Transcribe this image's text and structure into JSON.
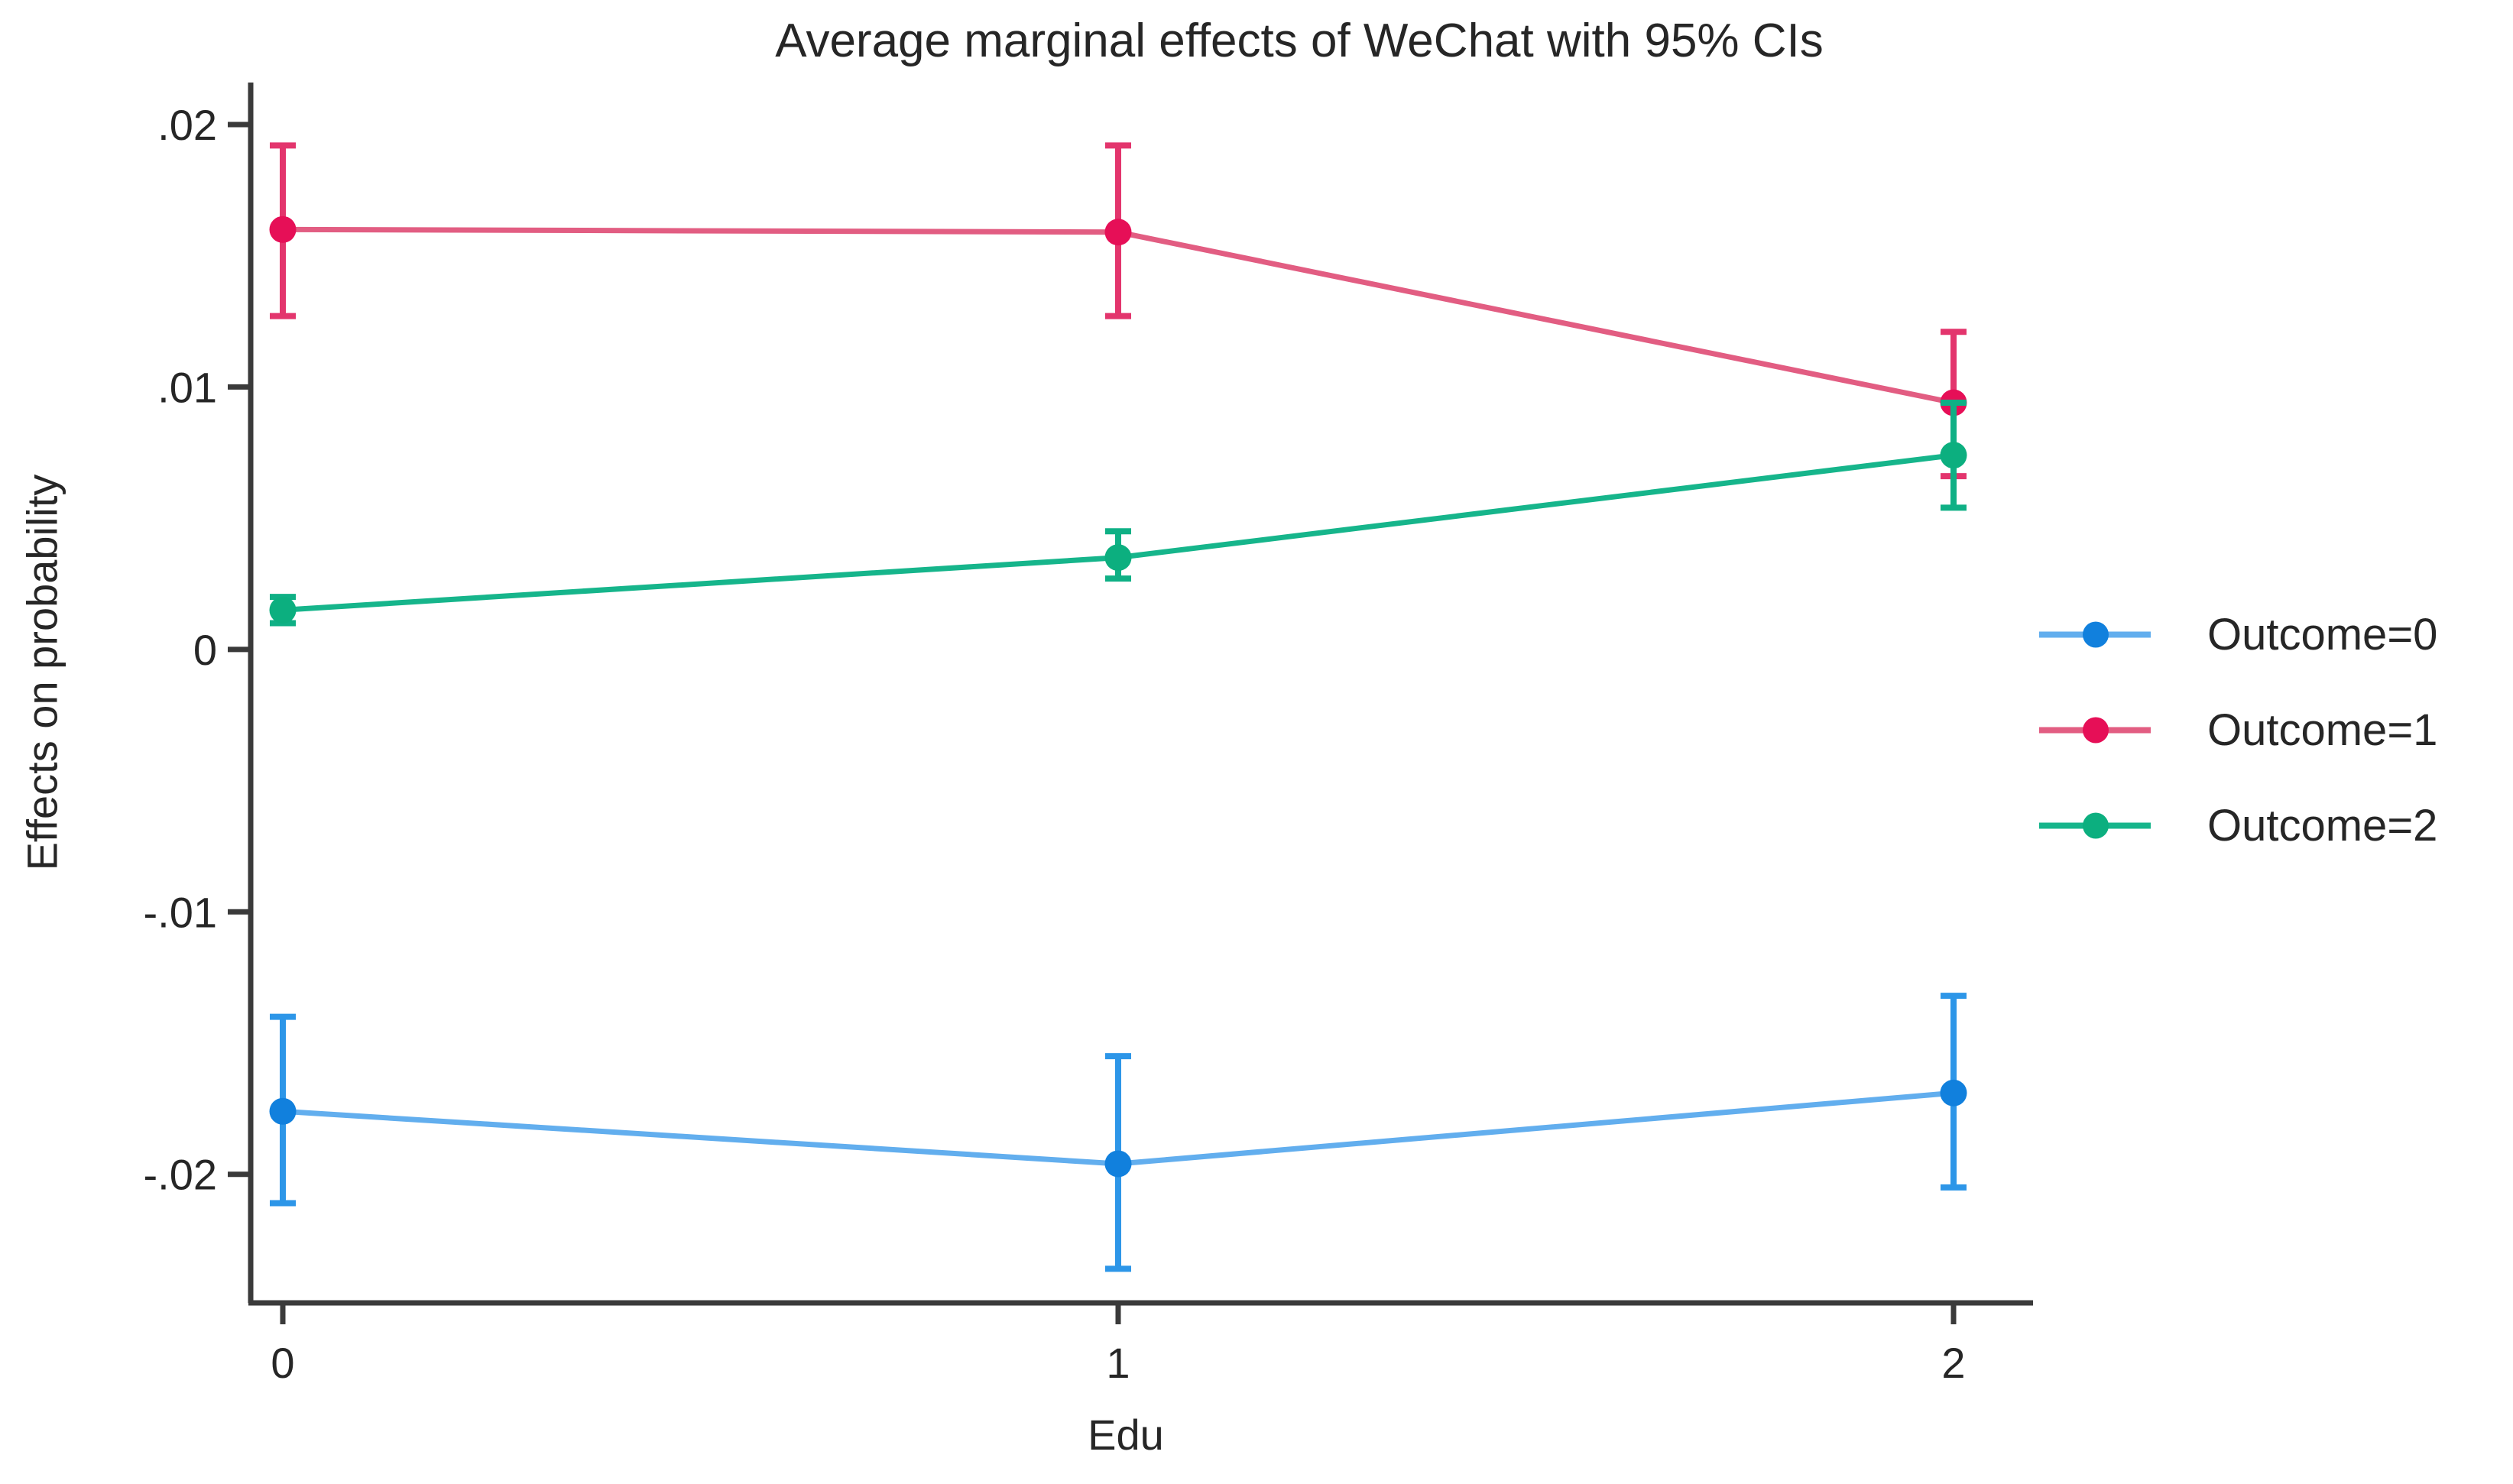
{
  "figure": {
    "background": "#ffffff",
    "text_color": "#262626",
    "axis_color": "#3a3a3a"
  },
  "chart_data": {
    "type": "line",
    "title": "Average marginal effects of WeChat with 95% CIs",
    "xlabel": "Edu",
    "ylabel": "Effects on probability",
    "categories": [
      "0",
      "1",
      "2"
    ],
    "y_ticks": [
      {
        "label": ".02",
        "value": 0.02
      },
      {
        "label": ".01",
        "value": 0.01
      },
      {
        "label": "0",
        "value": 0.0
      },
      {
        "label": "-.01",
        "value": -0.01
      },
      {
        "label": "-.02",
        "value": -0.02
      }
    ],
    "ylim": [
      -0.0249,
      0.0216
    ],
    "grid": false,
    "error_bars": "95% confidence intervals",
    "legend_position": "right",
    "series": [
      {
        "name": "Outcome=0",
        "marker_color": "#1180dd",
        "line_color": "#62aeee",
        "ci_color": "#2d96e8",
        "values": [
          -0.0176,
          -0.0196,
          -0.0169
        ],
        "ci_low": [
          -0.0211,
          -0.0236,
          -0.0205
        ],
        "ci_high": [
          -0.014,
          -0.0155,
          -0.0132
        ]
      },
      {
        "name": "Outcome=1",
        "marker_color": "#e60f57",
        "line_color": "#e25d82",
        "ci_color": "#e3356d",
        "values": [
          0.016,
          0.0159,
          0.0094
        ],
        "ci_low": [
          0.0127,
          0.0127,
          0.0066
        ],
        "ci_high": [
          0.0192,
          0.0192,
          0.0121
        ]
      },
      {
        "name": "Outcome=2",
        "marker_color": "#0caf7f",
        "line_color": "#16b58b",
        "ci_color": "#0fb085",
        "values": [
          0.0015,
          0.0035,
          0.0074
        ],
        "ci_low": [
          0.001,
          0.0027,
          0.0054
        ],
        "ci_high": [
          0.002,
          0.0045,
          0.0094
        ]
      }
    ]
  }
}
